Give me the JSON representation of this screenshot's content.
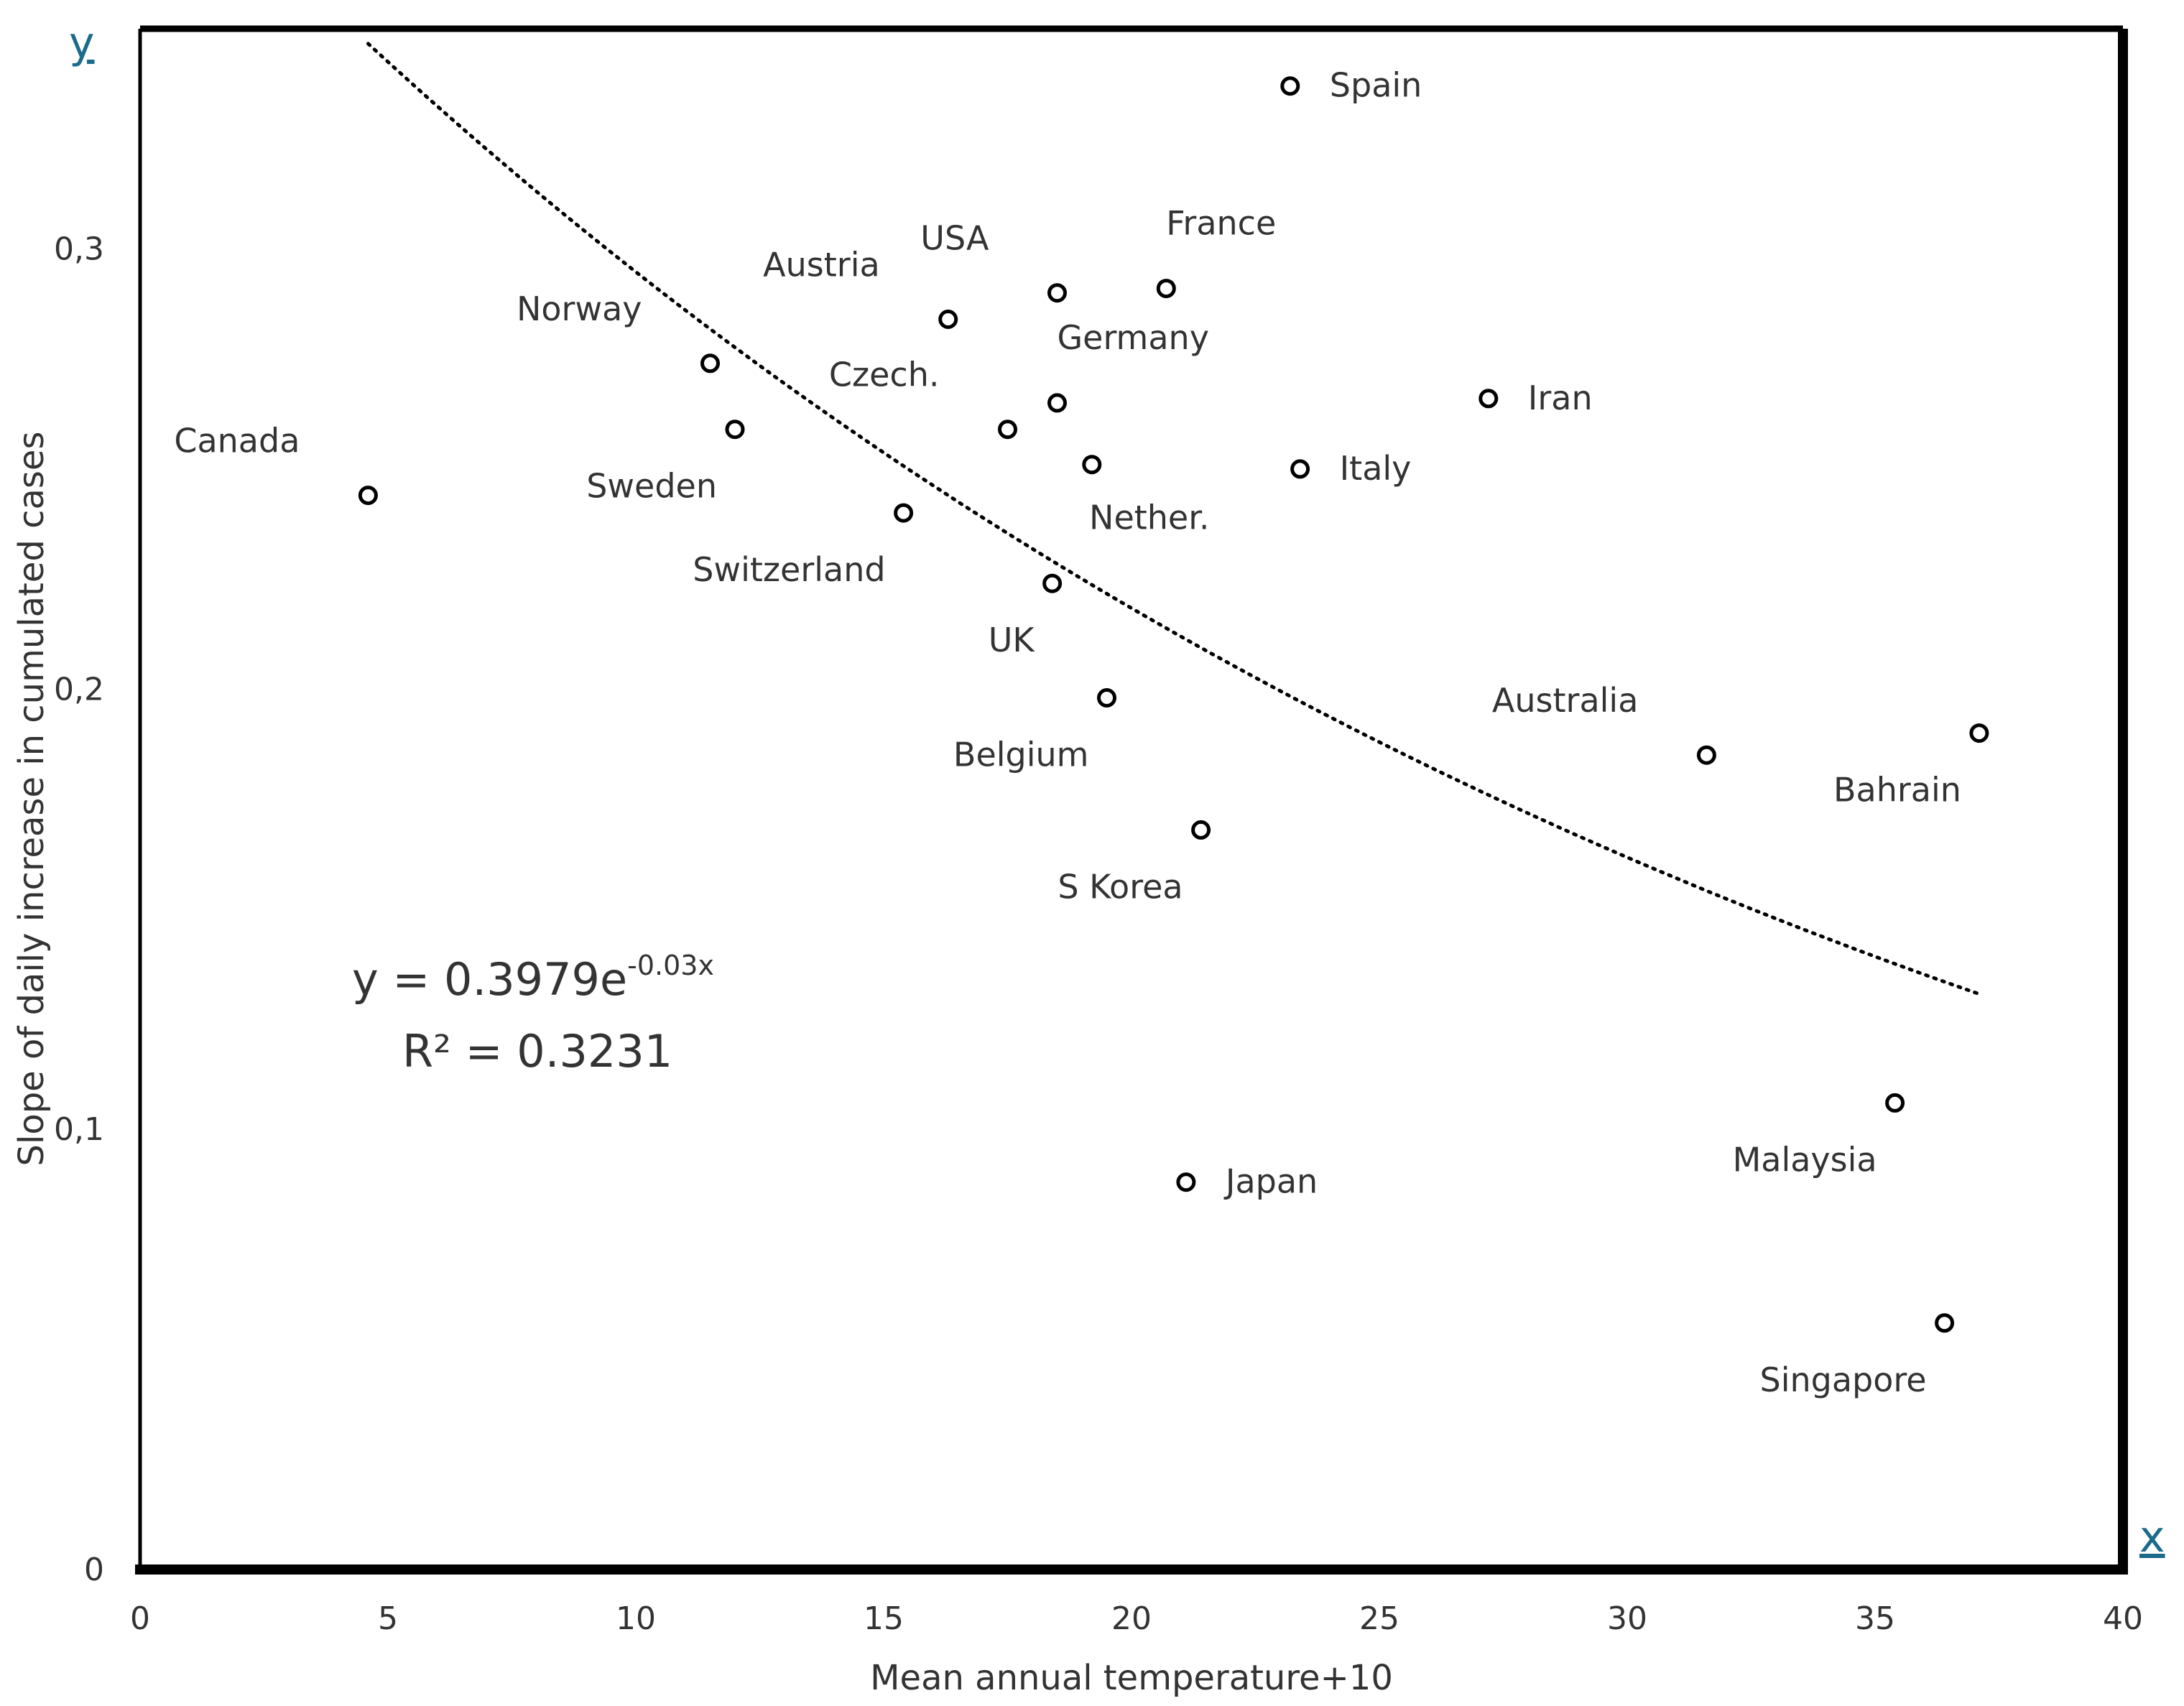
{
  "chart_data": {
    "type": "scatter",
    "title": "",
    "xlabel": "Mean annual temperature+10",
    "ylabel": "Slope of daily increase in cumulated cases",
    "xlim": [
      0,
      40
    ],
    "ylim": [
      0,
      0.35
    ],
    "x_ticks": [
      {
        "value": 0,
        "label": "0"
      },
      {
        "value": 5,
        "label": "5"
      },
      {
        "value": 10,
        "label": "10"
      },
      {
        "value": 15,
        "label": "15"
      },
      {
        "value": 20,
        "label": "20"
      },
      {
        "value": 25,
        "label": "25"
      },
      {
        "value": 30,
        "label": "30"
      },
      {
        "value": 35,
        "label": "35"
      },
      {
        "value": 40,
        "label": "40"
      }
    ],
    "y_ticks": [
      {
        "value": 0,
        "label": "0"
      },
      {
        "value": 0.1,
        "label": "0,1"
      },
      {
        "value": 0.2,
        "label": "0,2"
      },
      {
        "value": 0.3,
        "label": "0,3"
      }
    ],
    "axis_letter_x": "x",
    "axis_letter_y": "y",
    "grid": false,
    "points": [
      {
        "label": "Canada",
        "x": 4.6,
        "y": 0.244,
        "label_side": "above-left"
      },
      {
        "label": "Norway",
        "x": 11.5,
        "y": 0.274,
        "label_side": "above-left"
      },
      {
        "label": "Sweden",
        "x": 12.0,
        "y": 0.259,
        "label_side": "below-left"
      },
      {
        "label": "Austria",
        "x": 16.3,
        "y": 0.284,
        "label_side": "above-left"
      },
      {
        "label": "Czech.",
        "x": 17.5,
        "y": 0.259,
        "label_side": "above-left"
      },
      {
        "label": "Switzerland",
        "x": 15.4,
        "y": 0.24,
        "label_side": "below-left"
      },
      {
        "label": "USA",
        "x": 18.5,
        "y": 0.29,
        "label_side": "above-left"
      },
      {
        "label": "Germany",
        "x": 18.5,
        "y": 0.265,
        "label_side": "above-right"
      },
      {
        "label": "Nether.",
        "x": 19.2,
        "y": 0.251,
        "label_side": "below"
      },
      {
        "label": "UK",
        "x": 18.4,
        "y": 0.224,
        "label_side": "below-left"
      },
      {
        "label": "Belgium",
        "x": 19.5,
        "y": 0.198,
        "label_side": "below-left"
      },
      {
        "label": "France",
        "x": 20.7,
        "y": 0.291,
        "label_side": "above-right"
      },
      {
        "label": "Spain",
        "x": 23.2,
        "y": 0.337,
        "label_side": "right"
      },
      {
        "label": "Italy",
        "x": 23.4,
        "y": 0.25,
        "label_side": "right"
      },
      {
        "label": "Iran",
        "x": 27.2,
        "y": 0.266,
        "label_side": "right"
      },
      {
        "label": "S Korea",
        "x": 21.4,
        "y": 0.168,
        "label_side": "below-left"
      },
      {
        "label": "Japan",
        "x": 21.1,
        "y": 0.088,
        "label_side": "right"
      },
      {
        "label": "Australia",
        "x": 31.6,
        "y": 0.185,
        "label_side": "above-left"
      },
      {
        "label": "Bahrain",
        "x": 37.1,
        "y": 0.19,
        "label_side": "below-left"
      },
      {
        "label": "Malaysia",
        "x": 35.4,
        "y": 0.106,
        "label_side": "below-left"
      },
      {
        "label": "Singapore",
        "x": 36.4,
        "y": 0.056,
        "label_side": "below-left"
      }
    ],
    "trendline": {
      "type": "exponential",
      "a": 0.3979,
      "b": -0.03,
      "x_range": [
        4.6,
        37.1
      ],
      "style": "dotted",
      "equation_main": "y = 0.3979e",
      "equation_exp": "-0.03x",
      "r2_text": "R² = 0.3231"
    },
    "colors": {
      "frame": "#000000",
      "point": "#000000",
      "text": "#333333",
      "axis_letter": "#1b6b8a"
    }
  }
}
